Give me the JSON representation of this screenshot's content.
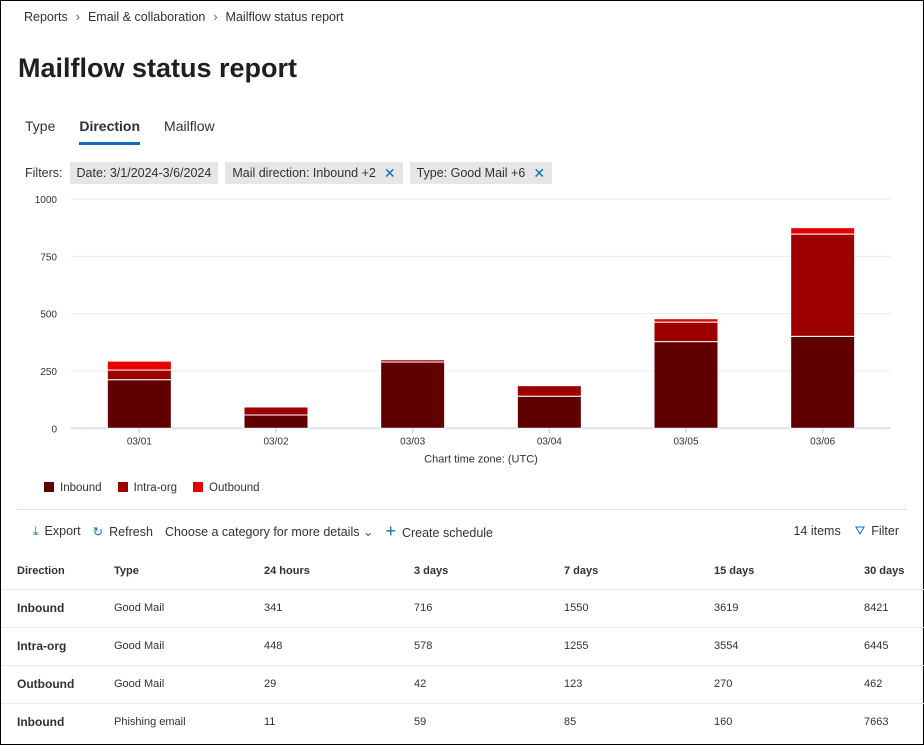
{
  "breadcrumb": [
    "Reports",
    "Email & collaboration",
    "Mailflow status report"
  ],
  "title": "Mailflow status report",
  "tabs": [
    {
      "label": "Type"
    },
    {
      "label": "Direction",
      "active": true
    },
    {
      "label": "Mailflow"
    }
  ],
  "filters": {
    "label": "Filters:",
    "chips": [
      "Date: 3/1/2024-3/6/2024",
      "Mail direction: Inbound +2",
      "Type: Good Mail +6"
    ]
  },
  "chart_data": {
    "type": "bar",
    "stacked": true,
    "categories": [
      "03/01",
      "03/02",
      "03/03",
      "03/04",
      "03/05",
      "03/06"
    ],
    "series": [
      {
        "name": "Inbound",
        "color": "#600000",
        "values": [
          212,
          58,
          289,
          140,
          378,
          401
        ]
      },
      {
        "name": "Intra-org",
        "color": "#9c0000",
        "values": [
          42,
          35,
          10,
          46,
          85,
          446
        ]
      },
      {
        "name": "Outbound",
        "color": "#e50000",
        "values": [
          39,
          0,
          0,
          0,
          15,
          28
        ]
      }
    ],
    "ylim": [
      0,
      1000
    ],
    "yticks": [
      0,
      250,
      500,
      750,
      1000
    ],
    "xlabel": "Chart time zone: (UTC)",
    "grid": true,
    "legend": "bottom-left"
  },
  "toolbar": {
    "export": "Export",
    "refresh": "Refresh",
    "category": "Choose a category for more details",
    "schedule": "Create schedule",
    "count": "14 items",
    "filter": "Filter"
  },
  "table": {
    "headers": [
      "Direction",
      "Type",
      "24 hours",
      "3 days",
      "7 days",
      "15 days",
      "30 days"
    ],
    "rows": [
      [
        "Inbound",
        "Good Mail",
        "341",
        "716",
        "1550",
        "3619",
        "8421"
      ],
      [
        "Intra-org",
        "Good Mail",
        "448",
        "578",
        "1255",
        "3554",
        "6445"
      ],
      [
        "Outbound",
        "Good Mail",
        "29",
        "42",
        "123",
        "270",
        "462"
      ],
      [
        "Inbound",
        "Phishing email",
        "11",
        "59",
        "85",
        "160",
        "7663"
      ]
    ]
  }
}
